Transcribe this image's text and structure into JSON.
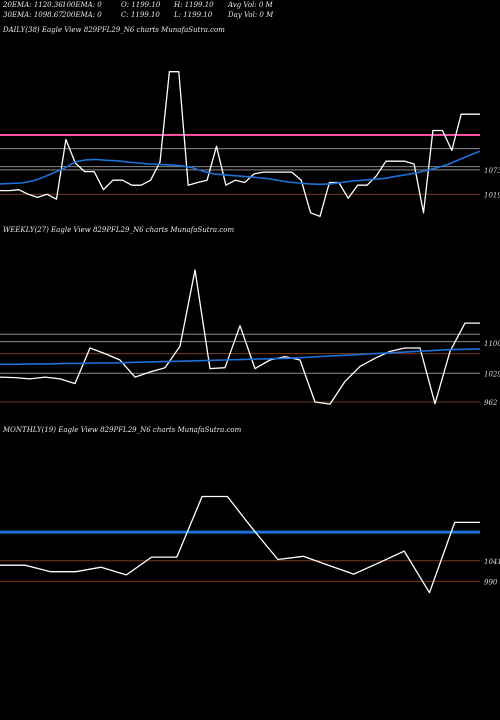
{
  "header": {
    "ema20": "20EMA: 1120.36",
    "ema100": "100EMA: 0",
    "open": "O: 1199.10",
    "high": "H: 1199.10",
    "avgvol": "Avg Vol: 0  M",
    "ema30": "30EMA: 1098.67",
    "ema200": "200EMA: 0",
    "close": "C: 1199.10",
    "low": "L: 1199.10",
    "dayvol": "Day Vol: 0  M"
  },
  "colors": {
    "price": "#ffffff",
    "ema": "#1e6fd6",
    "pink": "#ff4fa0",
    "brown": "#7a3a1a",
    "gray": "#8a8a8a",
    "bg": "#000000"
  },
  "chart_data": [
    {
      "type": "line",
      "title": "DAILY(38) Eagle  View  829PFL29_N6  charts MunafaSutra.com",
      "ylim": [
        940,
        1360
      ],
      "yticks": [
        1073,
        1019
      ],
      "hlines": [
        {
          "y": 1150,
          "color": "pink"
        },
        {
          "y": 1120,
          "color": "gray"
        },
        {
          "y": 1080,
          "color": "gray"
        },
        {
          "y": 1073,
          "color": "gray"
        },
        {
          "y": 1019,
          "color": "brown"
        }
      ],
      "series": [
        {
          "role": "price",
          "values": [
            1027,
            1027,
            1029,
            1019,
            1012,
            1019,
            1008,
            1140,
            1088,
            1069,
            1069,
            1029,
            1050,
            1050,
            1039,
            1039,
            1050,
            1090,
            1290,
            1290,
            1039,
            1045,
            1050,
            1125,
            1039,
            1050,
            1045,
            1064,
            1068,
            1068,
            1068,
            1068,
            1050,
            978,
            970,
            1045,
            1045,
            1010,
            1039,
            1039,
            1060,
            1092,
            1092,
            1092,
            1086,
            978,
            1160,
            1160,
            1116,
            1196,
            1196,
            1196
          ]
        },
        {
          "role": "ema",
          "values": [
            1042,
            1043,
            1044,
            1048,
            1056,
            1066,
            1076,
            1090,
            1095,
            1096,
            1094,
            1093,
            1090,
            1088,
            1086,
            1085,
            1084,
            1082,
            1078,
            1070,
            1064,
            1062,
            1060,
            1058,
            1056,
            1054,
            1050,
            1046,
            1044,
            1042,
            1041,
            1042,
            1045,
            1048,
            1050,
            1052,
            1054,
            1058,
            1062,
            1066,
            1072,
            1078,
            1085,
            1095,
            1105,
            1114
          ]
        }
      ]
    },
    {
      "type": "line",
      "title": "WEEKLY(27) Eagle  View  829PFL29_N6  charts MunafaSutra.com",
      "ylim": [
        920,
        1340
      ],
      "yticks": [
        1100,
        1029,
        962
      ],
      "hlines": [
        {
          "y": 1120,
          "color": "gray"
        },
        {
          "y": 1103,
          "color": "gray"
        },
        {
          "y": 1075,
          "color": "brown"
        },
        {
          "y": 1029,
          "color": "gray"
        },
        {
          "y": 962,
          "color": "brown"
        }
      ],
      "series": [
        {
          "role": "price",
          "values": [
            1020,
            1019,
            1016,
            1020,
            1016,
            1005,
            1088,
            1075,
            1060,
            1020,
            1032,
            1042,
            1092,
            1270,
            1040,
            1042,
            1140,
            1040,
            1060,
            1068,
            1060,
            962,
            957,
            1010,
            1045,
            1064,
            1080,
            1088,
            1088,
            958,
            1080,
            1146,
            1146
          ]
        },
        {
          "role": "ema",
          "values": [
            1050,
            1050,
            1051,
            1051,
            1052,
            1052,
            1053,
            1053,
            1054,
            1055,
            1056,
            1057,
            1058,
            1059,
            1060,
            1061,
            1062,
            1063,
            1064,
            1066,
            1068,
            1070,
            1072,
            1074,
            1076,
            1078,
            1080,
            1082,
            1084,
            1085,
            1086
          ]
        }
      ]
    },
    {
      "type": "line",
      "title": "MONTHLY(19) Eagle  View  829PFL29_N6  charts MunafaSutra.com",
      "ylim": [
        820,
        1340
      ],
      "yticks": [
        1041,
        990
      ],
      "hlines": [
        {
          "y": 1112,
          "color": "ema"
        },
        {
          "y": 1041,
          "color": "brown"
        },
        {
          "y": 990,
          "color": "brown"
        }
      ],
      "series": [
        {
          "role": "price",
          "values": [
            1030,
            1030,
            1014,
            1014,
            1025,
            1006,
            1050,
            1050,
            1200,
            1200,
            1120,
            1044,
            1052,
            1030,
            1008,
            1036,
            1065,
            962,
            1136,
            1136
          ]
        }
      ]
    }
  ]
}
